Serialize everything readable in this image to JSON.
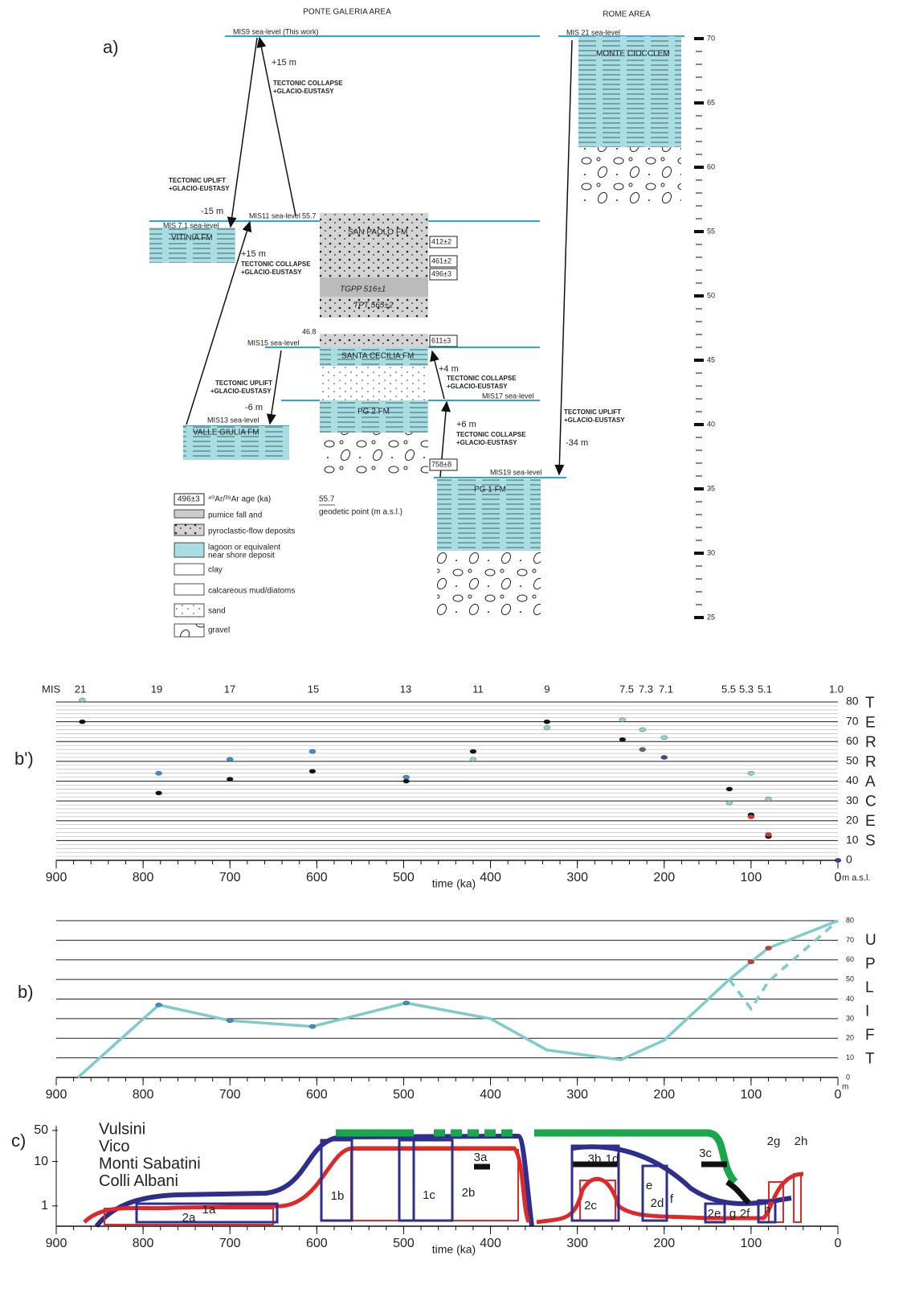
{
  "panel_a": {
    "label": "a)",
    "headings": [
      "PONTE GALERIA AREA",
      "ROME AREA"
    ],
    "texts": [
      "MIS9 sea-level (This work)",
      "MIS 21 sea-level",
      "MONTE CIOCCLEM",
      "+15 m",
      "TECTONIC COLLAPSE",
      "+GLACIO-EUSTASY",
      "TECTONIC UPLIFT",
      "+GLACIO-EUSTASY",
      "-15 m",
      "MIS 7.1 sea-level",
      "VITINIA FM",
      "MIS11 sea-level",
      "55.7",
      "SAN PAOLO FM",
      "412±2",
      "+15 m",
      "TECTONIC COLLAPSE",
      "+GLACIO-EUSTASY",
      "461±2",
      "496±3",
      "TGPP 516±1",
      "TPT 565±2",
      "46.8",
      "MIS15 sea-level",
      "611±3",
      "SANTA CECILIA FM",
      "+4 m",
      "TECTONIC COLLAPSE",
      "+GLACIO-EUSTASY",
      "TECTONIC UPLIFT",
      "+GLACIO-EUSTASY",
      "-6 m",
      "MIS17 sea-level",
      "PG 2 FM",
      "TECTONIC UPLIFT",
      "+GLACIO-EUSTASY",
      "MIS13 sea-level",
      "+6 m",
      "VALLE GIULIA FM",
      "TECTONIC COLLAPSE",
      "+GLACIO-EUSTASY",
      "-34 m",
      "758±8",
      "MIS19 sea-level",
      "PG 1 FM"
    ],
    "legend": [
      "496±3",
      "⁴⁰Ar/³⁹Ar age (ka)",
      "pumice fall and",
      "pyroclastic-flow deposits",
      "lagoon or equivalent",
      "near shore deposit",
      "clay",
      "calcareous mud/diatoms",
      "sand",
      "gravel",
      "55.7",
      "geodetic point (m a.s.l.)"
    ],
    "scale_ticks": [
      70,
      65,
      60,
      55,
      50,
      45,
      40,
      35,
      30,
      25
    ],
    "scale_lim": [
      70,
      25
    ]
  },
  "chart_data": [
    {
      "type": "scatter",
      "label": "b')",
      "mis_header": "MIS",
      "mis_labels": [
        "21",
        "19",
        "17",
        "15",
        "13",
        "11",
        "9",
        "7.5",
        "7.3",
        "7.1",
        "5.5",
        "5.3",
        "5.1",
        "1.0"
      ],
      "side_letters": [
        "T",
        "E",
        "R",
        "R",
        "A",
        "C",
        "E",
        "S"
      ],
      "xlabel": "time (ka)",
      "ylabel": "m a.s.l.",
      "xlim": [
        900,
        0
      ],
      "xticks": [
        900,
        800,
        700,
        600,
        500,
        400,
        300,
        200,
        100,
        0
      ],
      "ylim": [
        0,
        80
      ],
      "yticks": [
        0,
        10,
        20,
        30,
        40,
        50,
        60,
        70,
        80
      ],
      "grid": true,
      "series": [
        {
          "color": "#111111",
          "x": [
            870,
            782,
            700,
            605,
            497,
            420,
            335,
            248,
            125,
            100,
            80
          ],
          "values": [
            70,
            34,
            41,
            45,
            40,
            55,
            70,
            61,
            36,
            23,
            12
          ]
        },
        {
          "color": "#8fd3d0",
          "x": [
            870,
            335,
            248,
            225,
            200,
            420,
            100,
            125,
            80
          ],
          "values": [
            81,
            67,
            71,
            66,
            62,
            51,
            44,
            29,
            31
          ]
        },
        {
          "color": "#3a8fd0",
          "x": [
            782,
            700,
            605,
            497
          ],
          "values": [
            44,
            51,
            55,
            42
          ]
        },
        {
          "color": "#666666",
          "x": [
            225
          ],
          "values": [
            56
          ]
        },
        {
          "color": "#5b3a9e",
          "x": [
            200
          ],
          "values": [
            52
          ]
        },
        {
          "color": "#e03030",
          "x": [
            100,
            80
          ],
          "values": [
            22,
            13
          ]
        },
        {
          "color": "#3a3aa0",
          "x": [
            0
          ],
          "values": [
            0
          ]
        }
      ]
    },
    {
      "type": "line",
      "label": "b)",
      "side_letters": [
        "U",
        "P",
        "L",
        "I",
        "F",
        "T"
      ],
      "ylabel": "m",
      "xlim": [
        900,
        0
      ],
      "xticks": [
        900,
        800,
        700,
        600,
        500,
        400,
        300,
        200,
        100,
        0
      ],
      "ylim": [
        0,
        80
      ],
      "yticks": [
        0,
        10,
        20,
        30,
        40,
        50,
        60,
        70,
        80
      ],
      "grid": true,
      "series": [
        {
          "color": "#7ecbc9",
          "mode": "line",
          "x": [
            875,
            782,
            700,
            605,
            497,
            400,
            335,
            250,
            200,
            125,
            100,
            80,
            0
          ],
          "values": [
            0,
            37,
            29,
            26,
            38,
            30,
            14,
            9,
            19,
            50,
            59,
            66,
            80
          ]
        },
        {
          "color": "#7ecbc9",
          "mode": "dashed",
          "x": [
            125,
            100,
            80,
            0
          ],
          "values": [
            50,
            35,
            49,
            80
          ]
        },
        {
          "color": "#3a8fd0",
          "mode": "markers",
          "x": [
            782,
            700,
            605,
            497
          ],
          "values": [
            37,
            29,
            26,
            38
          ]
        },
        {
          "color": "#e03030",
          "mode": "markers",
          "x": [
            100,
            80
          ],
          "values": [
            59,
            66
          ]
        }
      ]
    },
    {
      "type": "timeline",
      "label": "c)",
      "xlabel": "time (ka)",
      "xlim": [
        900,
        0
      ],
      "xticks": [
        900,
        800,
        700,
        600,
        500,
        400,
        300,
        200,
        100,
        0
      ],
      "ylog": true,
      "ylim": [
        0.35,
        64
      ],
      "yticks": [
        1,
        10,
        50
      ],
      "legend": [
        {
          "name": "Vulsini",
          "color": "#1aa64a"
        },
        {
          "name": "Vico",
          "color": "#111111"
        },
        {
          "name": "Monti Sabatini",
          "color": "#2e2e8e"
        },
        {
          "name": "Colli Albani",
          "color": "#e02828"
        }
      ],
      "box_labels": [
        "2a",
        "1a",
        "1b",
        "2b",
        "1c",
        "3a",
        "3b",
        "1d",
        "2c",
        "e",
        "2d",
        "f",
        "3c",
        "2e",
        "g",
        "2f",
        "h",
        "2g",
        "2h"
      ]
    }
  ]
}
